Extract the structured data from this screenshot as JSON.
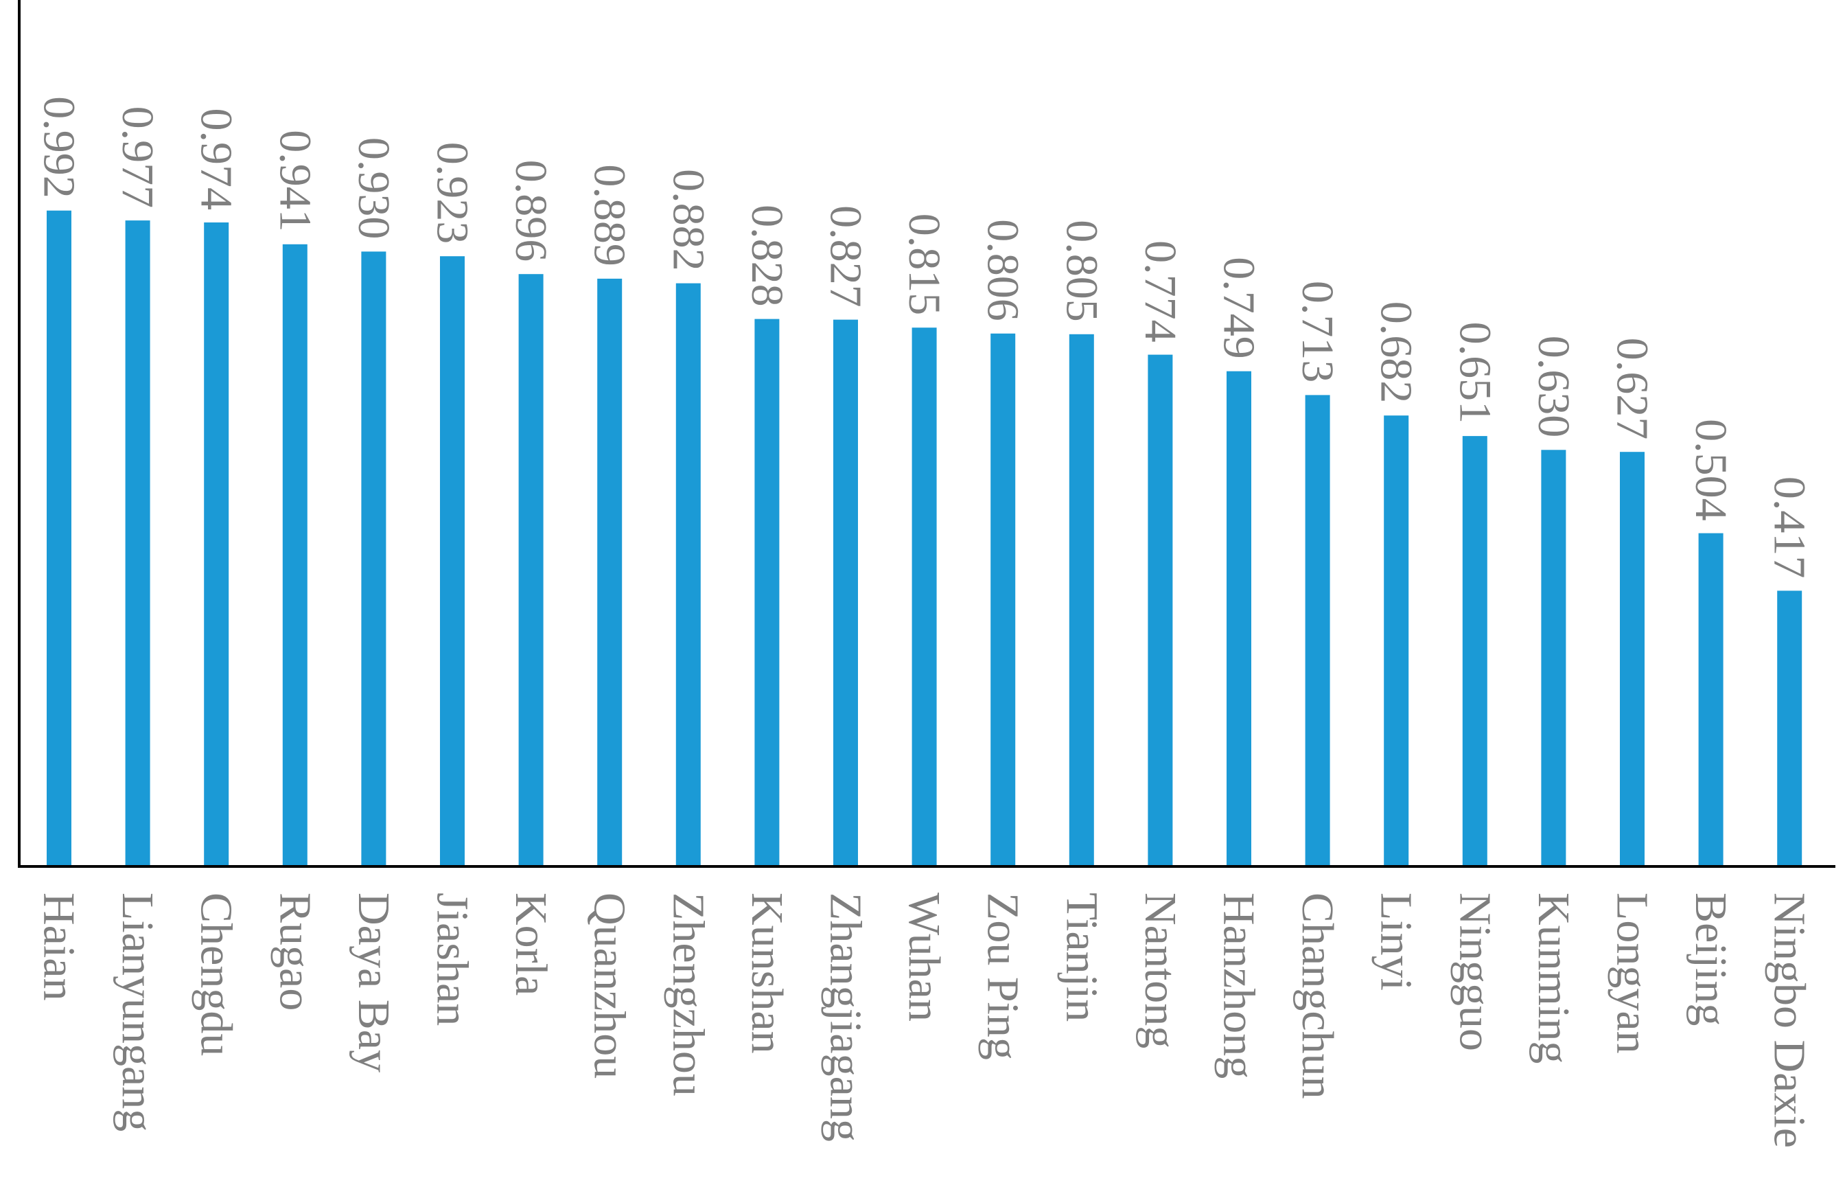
{
  "chart_data": {
    "type": "bar",
    "title": "",
    "xlabel": "",
    "ylabel": "",
    "ylim": [
      0,
      1.05
    ],
    "grid": false,
    "legend": "none",
    "categories": [
      "Haian",
      "Lianyungang",
      "Chengdu",
      "Rugao",
      "Daya Bay",
      "Jiashan",
      "Korla",
      "Quanzhou",
      "Zhengzhou",
      "Kunshan",
      "Zhangjiagang",
      "Wuhan",
      "Zou Ping",
      "Tianjin",
      "Nantong",
      "Hanzhong",
      "Changchun",
      "Linyi",
      "Ningguo",
      "Kunming",
      "Longyan",
      "Beijing",
      "Ningbo Daxie"
    ],
    "values": [
      0.992,
      0.977,
      0.974,
      0.941,
      0.93,
      0.923,
      0.896,
      0.889,
      0.882,
      0.828,
      0.827,
      0.815,
      0.806,
      0.805,
      0.774,
      0.749,
      0.713,
      0.682,
      0.651,
      0.63,
      0.627,
      0.504,
      0.417
    ],
    "value_labels": [
      "0.992",
      "0.977",
      "0.974",
      "0.941",
      "0.930",
      "0.923",
      "0.896",
      "0.889",
      "0.882",
      "0.828",
      "0.827",
      "0.815",
      "0.806",
      "0.805",
      "0.774",
      "0.749",
      "0.713",
      "0.682",
      "0.651",
      "0.630",
      "0.627",
      "0.504",
      "0.417"
    ],
    "colors": {
      "bar": "#1b9ad6",
      "axis": "#000000",
      "text": "#7f7f7f"
    }
  }
}
